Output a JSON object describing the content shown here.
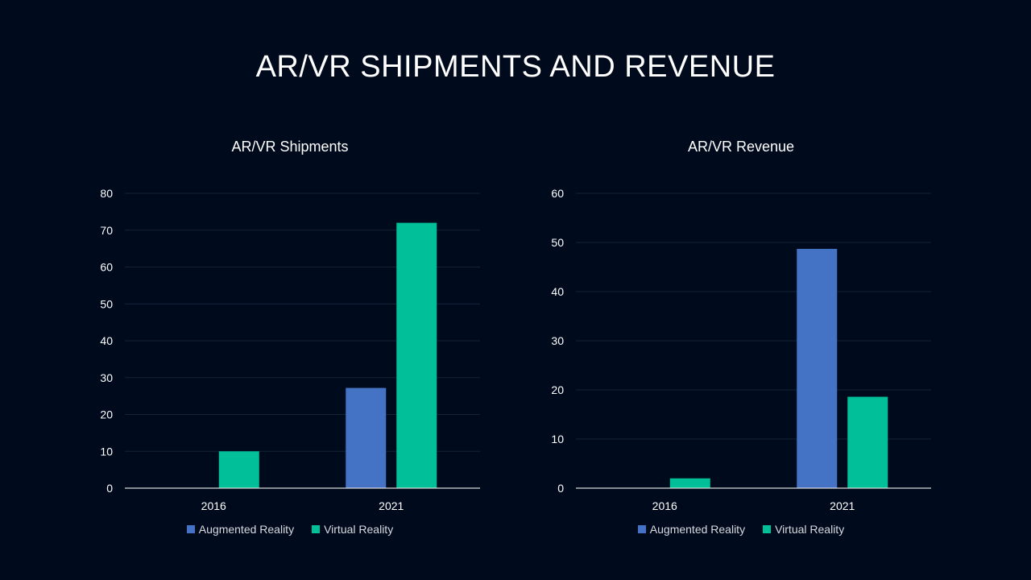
{
  "slide": {
    "title": "AR/VR SHIPMENTS AND REVENUE"
  },
  "colors": {
    "background": "#000a1d",
    "augmented_reality": "#4472c4",
    "virtual_reality": "#00bf99",
    "gridline": "#162238",
    "axis": "#d9d9d9",
    "tick_text": "#ffffff"
  },
  "chart_data": [
    {
      "type": "bar",
      "title": "AR/VR Shipments",
      "categories": [
        "2016",
        "2021"
      ],
      "series": [
        {
          "name": "Augmented Reality",
          "values": [
            0,
            27.2
          ]
        },
        {
          "name": "Virtual Reality",
          "values": [
            10,
            72
          ]
        }
      ],
      "yticks": [
        "0",
        "10",
        "20",
        "30",
        "40",
        "50",
        "60",
        "70",
        "80"
      ],
      "ylim": [
        0,
        80
      ],
      "grid": true,
      "legend": "bottom"
    },
    {
      "type": "bar",
      "title": "AR/VR Revenue",
      "categories": [
        "2016",
        "2021"
      ],
      "series": [
        {
          "name": "Augmented Reality",
          "values": [
            0,
            48.7
          ]
        },
        {
          "name": "Virtual Reality",
          "values": [
            2,
            18.6
          ]
        }
      ],
      "yticks": [
        "0",
        "10",
        "20",
        "30",
        "40",
        "50",
        "60"
      ],
      "ylim": [
        0,
        60
      ],
      "grid": true,
      "legend": "bottom"
    }
  ]
}
